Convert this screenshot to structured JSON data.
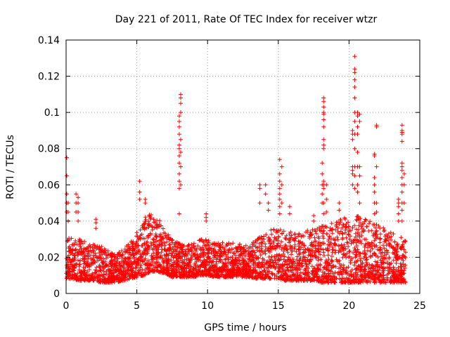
{
  "chart_data": {
    "type": "scatter",
    "title": "Day 221 of 2011, Rate Of TEC Index for receiver wtzr",
    "xlabel": "GPS time / hours",
    "ylabel": "ROTI / TECUs",
    "xlim": [
      0,
      25
    ],
    "ylim": [
      0,
      0.14
    ],
    "xticks": [
      0,
      5,
      10,
      15,
      20,
      25
    ],
    "yticks": [
      0,
      0.02,
      0.04,
      0.06,
      0.08,
      0.1,
      0.12,
      0.14
    ],
    "xtick_labels": [
      "0",
      "5",
      "10",
      "15",
      "20",
      "25"
    ],
    "ytick_labels": [
      "0",
      "0.02",
      "0.04",
      "0.06",
      "0.08",
      "0.1",
      "0.12",
      "0.14"
    ],
    "grid": true,
    "marker": "plus",
    "color": "#ff0000",
    "envelope": {
      "x": [
        0,
        0.5,
        1,
        1.5,
        2,
        2.5,
        3,
        3.5,
        4,
        4.5,
        5,
        5.5,
        6,
        6.5,
        7,
        7.5,
        8,
        8.5,
        9,
        9.5,
        10,
        10.5,
        11,
        11.5,
        12,
        12.5,
        13,
        13.5,
        14,
        14.5,
        15,
        15.5,
        16,
        16.5,
        17,
        17.5,
        18,
        18.5,
        19,
        19.5,
        20,
        20.5,
        21,
        21.5,
        22,
        22.5,
        23,
        23.5,
        24
      ],
      "low": [
        0.008,
        0.008,
        0.007,
        0.007,
        0.007,
        0.006,
        0.006,
        0.006,
        0.007,
        0.008,
        0.009,
        0.01,
        0.012,
        0.012,
        0.011,
        0.009,
        0.009,
        0.009,
        0.009,
        0.01,
        0.01,
        0.009,
        0.009,
        0.009,
        0.009,
        0.009,
        0.009,
        0.008,
        0.008,
        0.008,
        0.008,
        0.007,
        0.007,
        0.007,
        0.007,
        0.007,
        0.006,
        0.006,
        0.006,
        0.006,
        0.006,
        0.006,
        0.006,
        0.006,
        0.006,
        0.006,
        0.006,
        0.006,
        0.006
      ],
      "high": [
        0.032,
        0.03,
        0.03,
        0.028,
        0.027,
        0.026,
        0.024,
        0.022,
        0.024,
        0.028,
        0.034,
        0.042,
        0.046,
        0.042,
        0.035,
        0.03,
        0.028,
        0.027,
        0.028,
        0.03,
        0.03,
        0.028,
        0.028,
        0.028,
        0.028,
        0.027,
        0.027,
        0.03,
        0.034,
        0.036,
        0.036,
        0.034,
        0.034,
        0.034,
        0.035,
        0.036,
        0.037,
        0.04,
        0.04,
        0.042,
        0.043,
        0.043,
        0.042,
        0.04,
        0.038,
        0.036,
        0.034,
        0.032,
        0.03
      ]
    },
    "spikes": [
      {
        "x": 0.05,
        "y": [
          0.045,
          0.05,
          0.055,
          0.065,
          0.075
        ]
      },
      {
        "x": 0.15,
        "y": [
          0.04,
          0.045,
          0.05
        ]
      },
      {
        "x": 0.7,
        "y": [
          0.045,
          0.05,
          0.055
        ]
      },
      {
        "x": 0.85,
        "y": [
          0.04,
          0.045,
          0.05,
          0.053
        ]
      },
      {
        "x": 2.1,
        "y": [
          0.036,
          0.039,
          0.041
        ]
      },
      {
        "x": 5.2,
        "y": [
          0.052,
          0.056,
          0.062
        ]
      },
      {
        "x": 5.6,
        "y": [
          0.05,
          0.052
        ]
      },
      {
        "x": 8.0,
        "y": [
          0.044,
          0.058,
          0.062,
          0.066,
          0.072,
          0.076,
          0.08,
          0.082,
          0.088,
          0.092,
          0.095,
          0.098
        ]
      },
      {
        "x": 8.1,
        "y": [
          0.06,
          0.07,
          0.078,
          0.085,
          0.1,
          0.105,
          0.108,
          0.11
        ]
      },
      {
        "x": 9.9,
        "y": [
          0.04,
          0.042,
          0.044
        ]
      },
      {
        "x": 13.7,
        "y": [
          0.05,
          0.058,
          0.06
        ]
      },
      {
        "x": 14.1,
        "y": [
          0.055,
          0.06
        ]
      },
      {
        "x": 14.3,
        "y": [
          0.046,
          0.05
        ]
      },
      {
        "x": 15.1,
        "y": [
          0.044,
          0.048,
          0.052,
          0.055,
          0.058,
          0.062,
          0.066,
          0.074
        ]
      },
      {
        "x": 15.25,
        "y": [
          0.05,
          0.06,
          0.07
        ]
      },
      {
        "x": 15.8,
        "y": [
          0.044,
          0.048
        ]
      },
      {
        "x": 17.5,
        "y": [
          0.04,
          0.043
        ]
      },
      {
        "x": 18.1,
        "y": [
          0.05,
          0.055,
          0.06,
          0.066,
          0.072
        ]
      },
      {
        "x": 18.2,
        "y": [
          0.044,
          0.05,
          0.058,
          0.06,
          0.062,
          0.08,
          0.082,
          0.085,
          0.092,
          0.096,
          0.099,
          0.1,
          0.103,
          0.106,
          0.108
        ]
      },
      {
        "x": 18.4,
        "y": [
          0.045,
          0.052,
          0.06
        ]
      },
      {
        "x": 19.3,
        "y": [
          0.046,
          0.05
        ]
      },
      {
        "x": 20.25,
        "y": [
          0.06,
          0.066,
          0.068,
          0.07,
          0.085,
          0.088,
          0.09
        ]
      },
      {
        "x": 20.4,
        "y": [
          0.058,
          0.065,
          0.07,
          0.08,
          0.088,
          0.095,
          0.1,
          0.108,
          0.114,
          0.118,
          0.122,
          0.124,
          0.131
        ]
      },
      {
        "x": 20.6,
        "y": [
          0.056,
          0.06,
          0.07,
          0.078,
          0.088,
          0.092,
          0.098,
          0.1
        ]
      },
      {
        "x": 20.75,
        "y": [
          0.05,
          0.065,
          0.07,
          0.095,
          0.099
        ]
      },
      {
        "x": 21.8,
        "y": [
          0.044,
          0.05,
          0.056,
          0.06,
          0.064,
          0.076,
          0.077
        ]
      },
      {
        "x": 21.95,
        "y": [
          0.045,
          0.05,
          0.07,
          0.092,
          0.093
        ]
      },
      {
        "x": 23.5,
        "y": [
          0.04,
          0.044,
          0.048,
          0.05,
          0.052
        ]
      },
      {
        "x": 23.75,
        "y": [
          0.04,
          0.046,
          0.05,
          0.056,
          0.06,
          0.064,
          0.068,
          0.07,
          0.072,
          0.084,
          0.088,
          0.089,
          0.09,
          0.093
        ]
      },
      {
        "x": 23.9,
        "y": [
          0.05,
          0.06,
          0.066
        ]
      }
    ]
  }
}
